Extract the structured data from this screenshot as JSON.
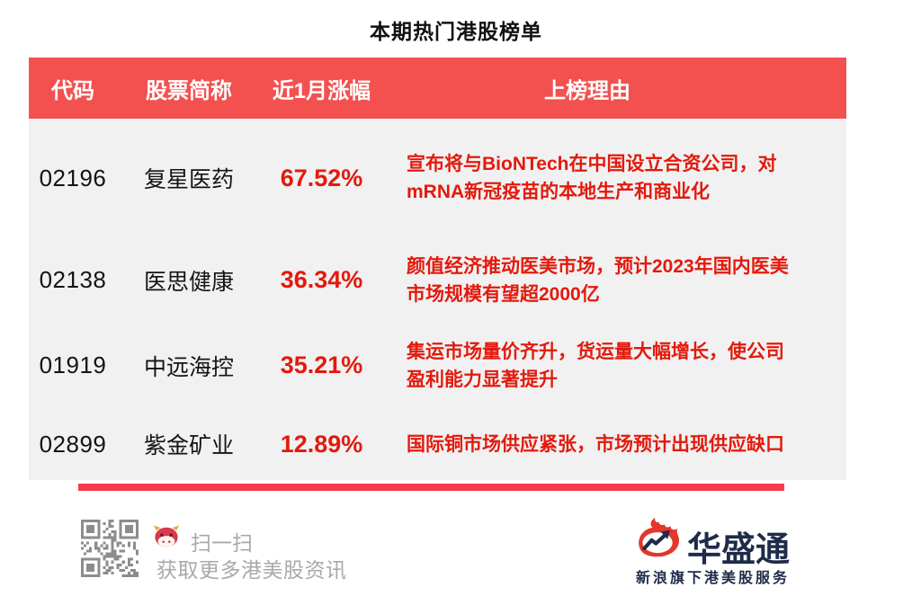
{
  "title": "本期热门港股榜单",
  "table": {
    "headers": {
      "code": "代码",
      "name": "股票简称",
      "change": "近1月涨幅",
      "reason": "上榜理由"
    },
    "rows": [
      {
        "code": "02196",
        "name": "复星医药",
        "change": "67.52%",
        "reason": "宣布将与BioNTech在中国设立合资公司，对mRNA新冠疫苗的本地生产和商业化"
      },
      {
        "code": "02138",
        "name": "医思健康",
        "change": "36.34%",
        "reason": "颜值经济推动医美市场，预计2023年国内医美市场规模有望超2000亿"
      },
      {
        "code": "01919",
        "name": "中远海控",
        "change": "35.21%",
        "reason": "集运市场量价齐升，货运量大幅增长，使公司盈利能力显著提升"
      },
      {
        "code": "02899",
        "name": "紫金矿业",
        "change": "12.89%",
        "reason": "国际铜市场供应紧张，市场预计出现供应缺口"
      }
    ]
  },
  "footer": {
    "scan_line1": "扫一扫",
    "scan_line2": "获取更多港美股资讯",
    "brand_name": "华盛通",
    "brand_subtitle": "新浪旗下港美股服务",
    "icons": {
      "qr": "qr-code",
      "bull": "bull-mascot-icon",
      "brand": "sina-flame-icon"
    }
  },
  "colors": {
    "header_red": "#F3514F",
    "accent_red": "#E31A0C",
    "bottom_bar_red": "#FA3B4C",
    "table_body_gray": "#F1F1F2",
    "footer_text_gray": "#A9A9A9",
    "brand_navy": "#1E2C49",
    "qr_gray": "#8C8C8C"
  },
  "chart_data": {
    "type": "table",
    "title": "本期热门港股榜单",
    "columns": [
      "代码",
      "股票简称",
      "近1月涨幅",
      "上榜理由"
    ],
    "rows": [
      [
        "02196",
        "复星医药",
        "67.52%",
        "宣布将与BioNTech在中国设立合资公司，对mRNA新冠疫苗的本地生产和商业化"
      ],
      [
        "02138",
        "医思健康",
        "36.34%",
        "颜值经济推动医美市场，预计2023年国内医美市场规模有望超2000亿"
      ],
      [
        "01919",
        "中远海控",
        "35.21%",
        "集运市场量价齐升，货运量大幅增长，使公司盈利能力显著提升"
      ],
      [
        "02899",
        "紫金矿业",
        "12.89%",
        "国际铜市场供应紧张，市场预计出现供应缺口"
      ]
    ],
    "change_values_pct": [
      67.52,
      36.34,
      35.21,
      12.89
    ]
  }
}
